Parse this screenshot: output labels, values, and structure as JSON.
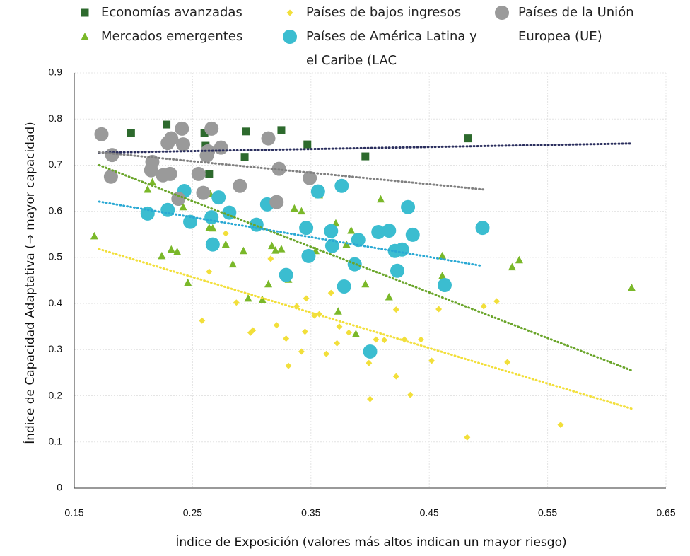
{
  "chart_data": {
    "type": "scatter",
    "xlabel": "Índice de Exposición (valores más altos indican un mayor riesgo)",
    "ylabel": "Índice de Capacidad Adaptativa (→ mayor capacidad)",
    "xlim": [
      0.15,
      0.65
    ],
    "xticks": [
      0.15,
      0.25,
      0.35,
      0.45,
      0.55,
      0.65
    ],
    "ylim": [
      0,
      0.9
    ],
    "yticks": [
      0,
      0.1,
      0.2,
      0.3,
      0.4,
      0.5,
      0.6,
      0.7,
      0.8,
      0.9
    ],
    "grid": true,
    "legend": "top",
    "series": [
      {
        "name": "Economías avanzadas",
        "color": "#2d6a2d",
        "marker": "square",
        "trend_color": "#2b2f5e",
        "x": [
          0.198,
          0.228,
          0.261,
          0.295,
          0.294,
          0.325,
          0.347,
          0.396,
          0.483,
          0.26,
          0.264
        ],
        "values": [
          0.77,
          0.788,
          0.742,
          0.773,
          0.718,
          0.776,
          0.745,
          0.719,
          0.758,
          0.77,
          0.681
        ],
        "trend_x": [
          0.171,
          0.621
        ],
        "trend_y": [
          0.727,
          0.747
        ]
      },
      {
        "name": "Mercados emergentes",
        "color": "#7ab829",
        "marker": "triangle",
        "trend_color": "#6aa52a",
        "x": [
          0.167,
          0.212,
          0.216,
          0.224,
          0.232,
          0.237,
          0.242,
          0.246,
          0.264,
          0.265,
          0.267,
          0.278,
          0.284,
          0.293,
          0.297,
          0.309,
          0.314,
          0.317,
          0.32,
          0.325,
          0.331,
          0.336,
          0.342,
          0.354,
          0.357,
          0.373,
          0.371,
          0.38,
          0.384,
          0.388,
          0.396,
          0.409,
          0.416,
          0.461,
          0.461,
          0.52,
          0.526,
          0.621
        ],
        "values": [
          0.546,
          0.647,
          0.663,
          0.503,
          0.517,
          0.512,
          0.609,
          0.445,
          0.564,
          0.637,
          0.563,
          0.528,
          0.485,
          0.514,
          0.411,
          0.408,
          0.442,
          0.525,
          0.515,
          0.518,
          0.452,
          0.606,
          0.6,
          0.514,
          0.635,
          0.383,
          0.574,
          0.528,
          0.558,
          0.334,
          0.442,
          0.626,
          0.414,
          0.503,
          0.46,
          0.479,
          0.494,
          0.434
        ],
        "trend_x": [
          0.171,
          0.621
        ],
        "trend_y": [
          0.7,
          0.255
        ]
      },
      {
        "name": "Países de bajos ingresos",
        "color": "#f2df3a",
        "marker": "diamond",
        "trend_color": "#f2df3a",
        "x": [
          0.258,
          0.264,
          0.278,
          0.287,
          0.299,
          0.301,
          0.316,
          0.321,
          0.329,
          0.331,
          0.338,
          0.342,
          0.345,
          0.346,
          0.353,
          0.357,
          0.363,
          0.367,
          0.372,
          0.374,
          0.382,
          0.399,
          0.4,
          0.405,
          0.412,
          0.422,
          0.422,
          0.429,
          0.434,
          0.443,
          0.452,
          0.458,
          0.482,
          0.496,
          0.507,
          0.516,
          0.561
        ],
        "values": [
          0.363,
          0.469,
          0.552,
          0.402,
          0.337,
          0.342,
          0.497,
          0.353,
          0.324,
          0.265,
          0.394,
          0.296,
          0.339,
          0.411,
          0.374,
          0.377,
          0.291,
          0.423,
          0.314,
          0.35,
          0.337,
          0.271,
          0.193,
          0.322,
          0.321,
          0.387,
          0.242,
          0.322,
          0.202,
          0.322,
          0.276,
          0.388,
          0.11,
          0.394,
          0.405,
          0.273,
          0.137
        ],
        "trend_x": [
          0.171,
          0.621
        ],
        "trend_y": [
          0.518,
          0.172
        ]
      },
      {
        "name": "Países de América Latina y el Caribe (LAC",
        "color": "#3bbdd0",
        "marker": "circle",
        "trend_color": "#2aa9d4",
        "x": [
          0.212,
          0.229,
          0.243,
          0.248,
          0.266,
          0.272,
          0.281,
          0.267,
          0.304,
          0.313,
          0.329,
          0.346,
          0.348,
          0.356,
          0.367,
          0.376,
          0.368,
          0.387,
          0.378,
          0.39,
          0.407,
          0.416,
          0.4,
          0.421,
          0.427,
          0.423,
          0.432,
          0.436,
          0.463,
          0.495
        ],
        "values": [
          0.595,
          0.603,
          0.644,
          0.577,
          0.587,
          0.63,
          0.597,
          0.528,
          0.571,
          0.615,
          0.462,
          0.564,
          0.503,
          0.643,
          0.557,
          0.655,
          0.525,
          0.485,
          0.437,
          0.538,
          0.555,
          0.558,
          0.296,
          0.514,
          0.517,
          0.471,
          0.609,
          0.549,
          0.44,
          0.564
        ],
        "trend_x": [
          0.171,
          0.494
        ],
        "trend_y": [
          0.621,
          0.482
        ]
      },
      {
        "name": "Países de la Unión Europea (UE)",
        "color": "#9a9a9a",
        "marker": "circle",
        "trend_color": "#808080",
        "x": [
          0.173,
          0.182,
          0.181,
          0.229,
          0.232,
          0.241,
          0.242,
          0.231,
          0.225,
          0.215,
          0.216,
          0.238,
          0.255,
          0.262,
          0.263,
          0.266,
          0.274,
          0.259,
          0.29,
          0.314,
          0.321,
          0.323,
          0.349
        ],
        "values": [
          0.767,
          0.722,
          0.675,
          0.748,
          0.758,
          0.779,
          0.745,
          0.681,
          0.678,
          0.689,
          0.707,
          0.627,
          0.681,
          0.721,
          0.73,
          0.779,
          0.738,
          0.64,
          0.655,
          0.758,
          0.62,
          0.692,
          0.672
        ],
        "trend_x": [
          0.171,
          0.497
        ],
        "trend_y": [
          0.728,
          0.647
        ]
      }
    ]
  }
}
